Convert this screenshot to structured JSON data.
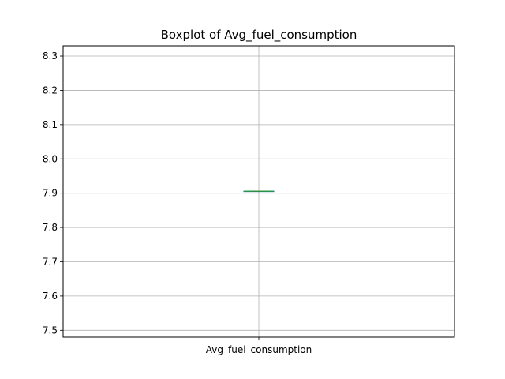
{
  "chart_data": {
    "type": "box",
    "title": "Boxplot of Avg_fuel_consumption",
    "categories": [
      "Avg_fuel_consumption"
    ],
    "ylim": [
      7.48,
      8.33
    ],
    "yticks": [
      "7.5",
      "7.6",
      "7.7",
      "7.8",
      "7.9",
      "8.0",
      "8.1",
      "8.2",
      "8.3"
    ],
    "grid": true,
    "series": [
      {
        "min": 7.906,
        "q1": 7.906,
        "median": 7.906,
        "q3": 7.906,
        "max": 7.906
      }
    ],
    "colors": {
      "box": "#1f77b4",
      "median": "#2ca02c",
      "grid": "#b0b0b0",
      "axes": "#000000"
    }
  }
}
